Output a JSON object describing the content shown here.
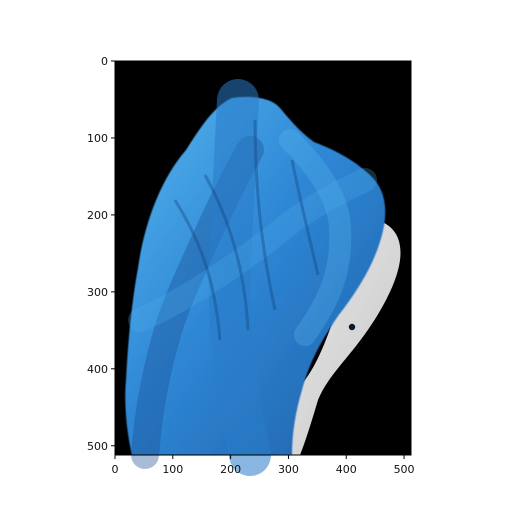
{
  "figure": {
    "background_color": "#ffffff",
    "axes_frame_color": "#000000"
  },
  "image": {
    "description_colors": {
      "background": "#000000",
      "blue_main": "#2f88d6",
      "blue_dark": "#1f5fa8",
      "blue_light": "#56b6ee",
      "white_background": "#f0f0f0"
    },
    "pixel_size": [
      512,
      512
    ]
  },
  "axes": {
    "x": {
      "range": [
        0,
        512
      ],
      "ticks": [
        {
          "value": 0,
          "label": "0"
        },
        {
          "value": 100,
          "label": "100"
        },
        {
          "value": 200,
          "label": "200"
        },
        {
          "value": 300,
          "label": "300"
        },
        {
          "value": 400,
          "label": "400"
        },
        {
          "value": 500,
          "label": "500"
        }
      ]
    },
    "y": {
      "range": [
        0,
        512
      ],
      "inverted": true,
      "ticks": [
        {
          "value": 0,
          "label": "0"
        },
        {
          "value": 100,
          "label": "100"
        },
        {
          "value": 200,
          "label": "200"
        },
        {
          "value": 300,
          "label": "300"
        },
        {
          "value": 400,
          "label": "400"
        },
        {
          "value": 500,
          "label": "500"
        }
      ]
    }
  }
}
